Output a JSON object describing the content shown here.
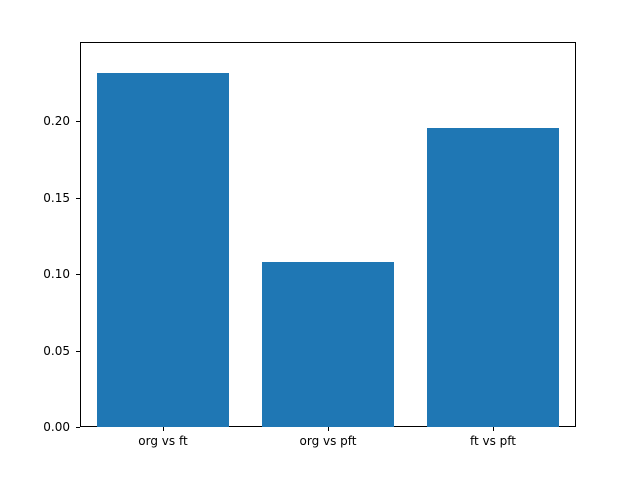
{
  "chart_data": {
    "type": "bar",
    "title": "",
    "xlabel": "",
    "ylabel": "",
    "categories": [
      "org vs ft",
      "org vs pft",
      "ft vs pft"
    ],
    "values": [
      0.232,
      0.108,
      0.196
    ],
    "ylim": [
      0,
      0.252
    ],
    "yticks": [
      0.0,
      0.05,
      0.1,
      0.15,
      0.2
    ],
    "ytick_labels": [
      "0.00",
      "0.05",
      "0.10",
      "0.15",
      "0.20"
    ],
    "bar_color": "#1f77b4",
    "grid": false,
    "legend": null
  }
}
